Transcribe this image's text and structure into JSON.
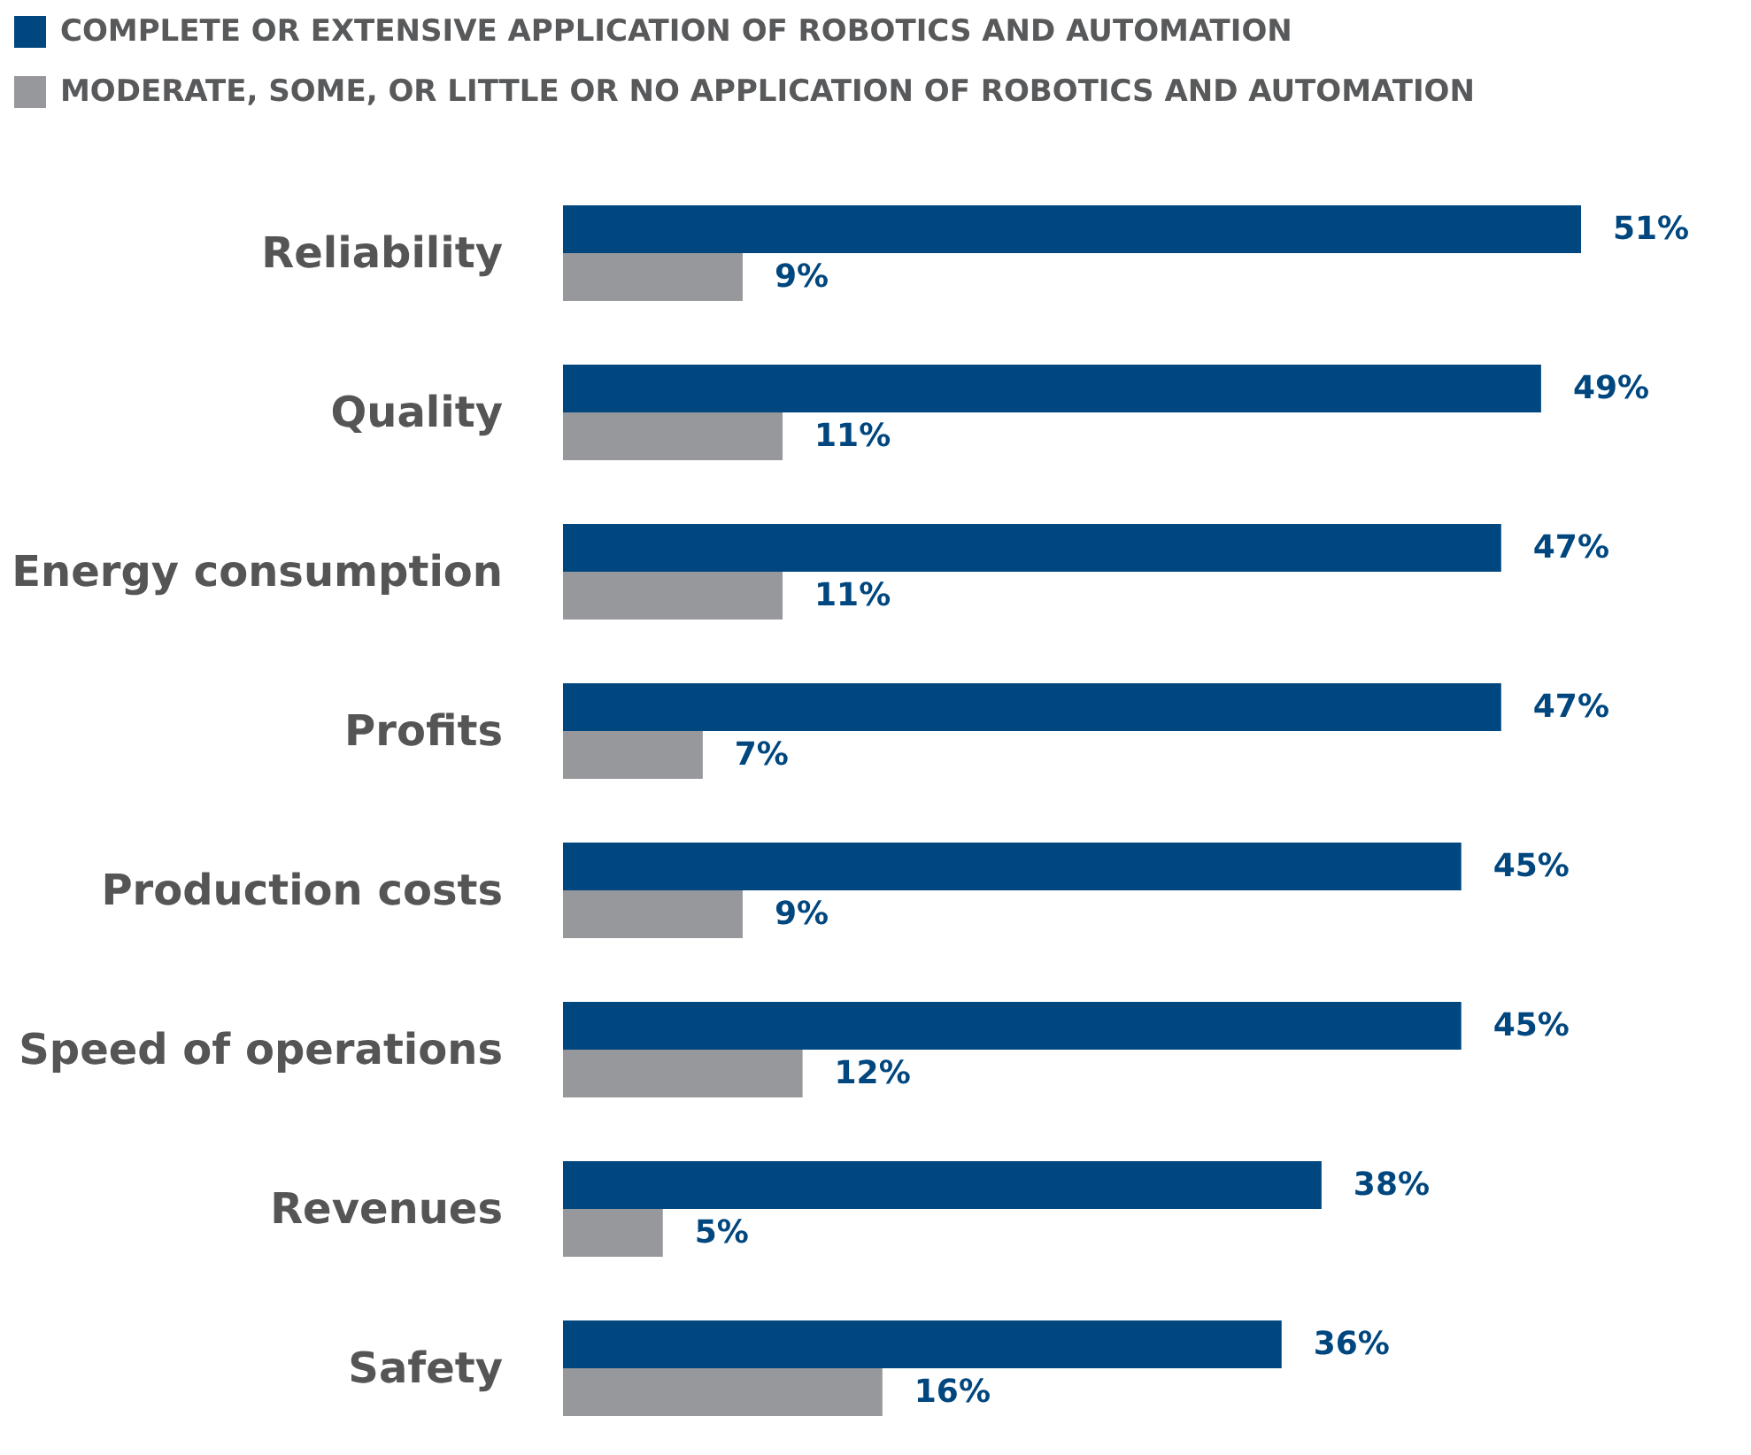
{
  "chart_data": {
    "type": "bar",
    "orientation": "horizontal",
    "categories": [
      "Reliability",
      "Quality",
      "Energy consumption",
      "Profits",
      "Production costs",
      "Speed of operations",
      "Revenues",
      "Safety"
    ],
    "series": [
      {
        "name": "COMPLETE OR EXTENSIVE APPLICATION OF ROBOTICS AND AUTOMATION",
        "color": "#00477f",
        "values": [
          51,
          49,
          47,
          47,
          45,
          45,
          38,
          36
        ],
        "value_labels": [
          "51%",
          "49%",
          "47%",
          "47%",
          "45%",
          "45%",
          "38%",
          "36%"
        ]
      },
      {
        "name": "MODERATE, SOME, OR LITTLE OR NO APPLICATION OF ROBOTICS AND AUTOMATION",
        "color": "#97989b",
        "values": [
          9,
          11,
          11,
          7,
          9,
          12,
          5,
          16
        ],
        "value_labels": [
          "9%",
          "11%",
          "11%",
          "7%",
          "9%",
          "12%",
          "5%",
          "16%"
        ]
      }
    ],
    "legend": "top left"
  }
}
